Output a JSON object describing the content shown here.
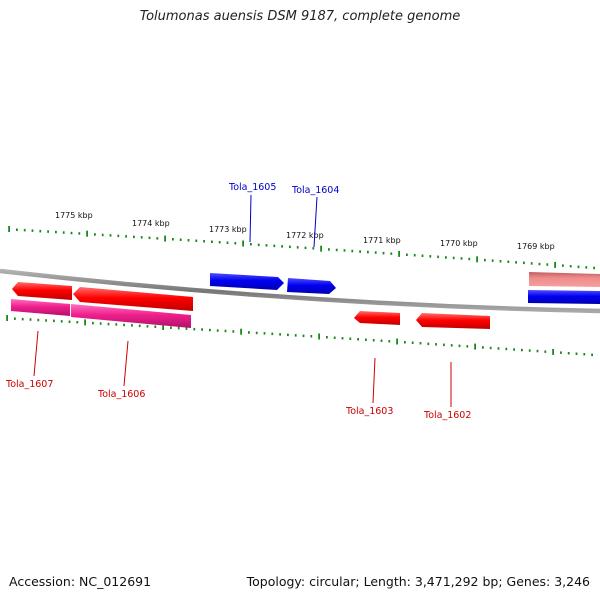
{
  "title": "Tolumonas auensis DSM 9187, complete genome",
  "footer": {
    "accession": "Accession: NC_012691",
    "topology": "Topology: circular; Length: 3,471,292 bp; Genes: 3,246"
  },
  "colors": {
    "backbone": "#8a8a8a",
    "tick": "#1a8a1a",
    "forward_gene": "#0000ee",
    "reverse_gene": "#ee0000",
    "rna_gene": "#ee2299",
    "pseudo_gene": "#ee8888",
    "reverse_label": "#cc0000",
    "forward_label": "#0000cc"
  },
  "scale_labels": [
    "1775 kbp",
    "1774 kbp",
    "1773 kbp",
    "1772 kbp",
    "1771 kbp",
    "1770 kbp",
    "1769 kbp"
  ],
  "genes": [
    {
      "label": "Tola_1607",
      "strand": "reverse",
      "type": "cds"
    },
    {
      "label": "Tola_1606",
      "strand": "reverse",
      "type": "cds"
    },
    {
      "label": "Tola_1605",
      "strand": "forward",
      "type": "cds"
    },
    {
      "label": "Tola_1604",
      "strand": "forward",
      "type": "cds"
    },
    {
      "label": "Tola_1603",
      "strand": "reverse",
      "type": "cds"
    },
    {
      "label": "Tola_1602",
      "strand": "reverse",
      "type": "cds"
    }
  ]
}
